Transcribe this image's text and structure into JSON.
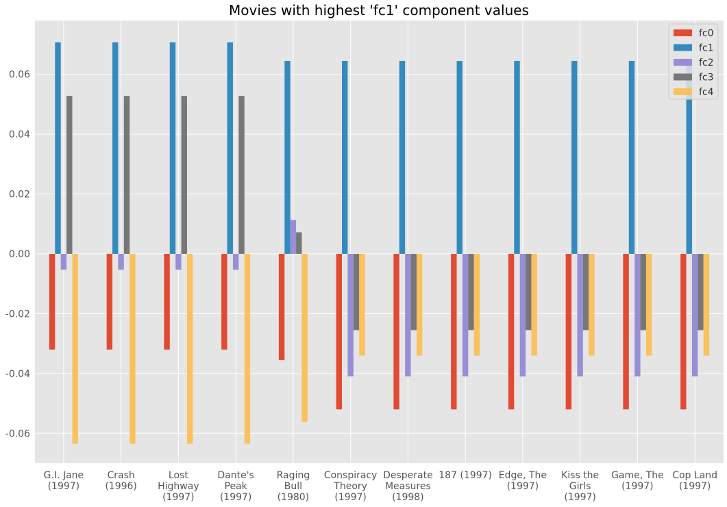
{
  "chart_data": {
    "type": "bar",
    "title": "Movies with highest 'fc1' component values",
    "xlabel": "",
    "ylabel": "",
    "ylim": [
      -0.07,
      0.078
    ],
    "yticks": [
      -0.06,
      -0.04,
      -0.02,
      0.0,
      0.02,
      0.04,
      0.06
    ],
    "ytick_labels": [
      "-0.06",
      "-0.04",
      "-0.02",
      "0.00",
      "0.02",
      "0.04",
      "0.06"
    ],
    "grid": true,
    "legend_position": "top-right",
    "categories": [
      [
        "G.I. Jane",
        "(1997)"
      ],
      [
        "Crash",
        "(1996)"
      ],
      [
        "Lost",
        "Highway",
        "(1997)"
      ],
      [
        "Dante's",
        "Peak",
        "(1997)"
      ],
      [
        "Raging",
        "Bull",
        "(1980)"
      ],
      [
        "Conspiracy",
        "Theory",
        "(1997)"
      ],
      [
        "Desperate",
        "Measures",
        "(1998)"
      ],
      [
        "187 (1997)"
      ],
      [
        "Edge, The",
        "(1997)"
      ],
      [
        "Kiss the",
        "Girls",
        "(1997)"
      ],
      [
        "Game, The",
        "(1997)"
      ],
      [
        "Cop Land",
        "(1997)"
      ]
    ],
    "series": [
      {
        "name": "fc0",
        "color": "#E24A33",
        "values": [
          -0.032,
          -0.032,
          -0.032,
          -0.032,
          -0.0355,
          -0.052,
          -0.052,
          -0.052,
          -0.052,
          -0.052,
          -0.052,
          -0.052
        ]
      },
      {
        "name": "fc1",
        "color": "#348ABD",
        "values": [
          0.0707,
          0.0707,
          0.0707,
          0.0707,
          0.0645,
          0.0645,
          0.0645,
          0.0645,
          0.0645,
          0.0645,
          0.0645,
          0.0645
        ]
      },
      {
        "name": "fc2",
        "color": "#988ED5",
        "values": [
          -0.0053,
          -0.0053,
          -0.0053,
          -0.0053,
          0.0113,
          -0.041,
          -0.041,
          -0.041,
          -0.041,
          -0.041,
          -0.041,
          -0.041
        ]
      },
      {
        "name": "fc3",
        "color": "#777777",
        "values": [
          0.0528,
          0.0528,
          0.0528,
          0.0528,
          0.0072,
          -0.0255,
          -0.0255,
          -0.0255,
          -0.0255,
          -0.0255,
          -0.0255,
          -0.0255
        ]
      },
      {
        "name": "fc4",
        "color": "#FBC15E",
        "values": [
          -0.0635,
          -0.0635,
          -0.0635,
          -0.0635,
          -0.0562,
          -0.034,
          -0.034,
          -0.034,
          -0.034,
          -0.034,
          -0.034,
          -0.034
        ]
      }
    ]
  }
}
